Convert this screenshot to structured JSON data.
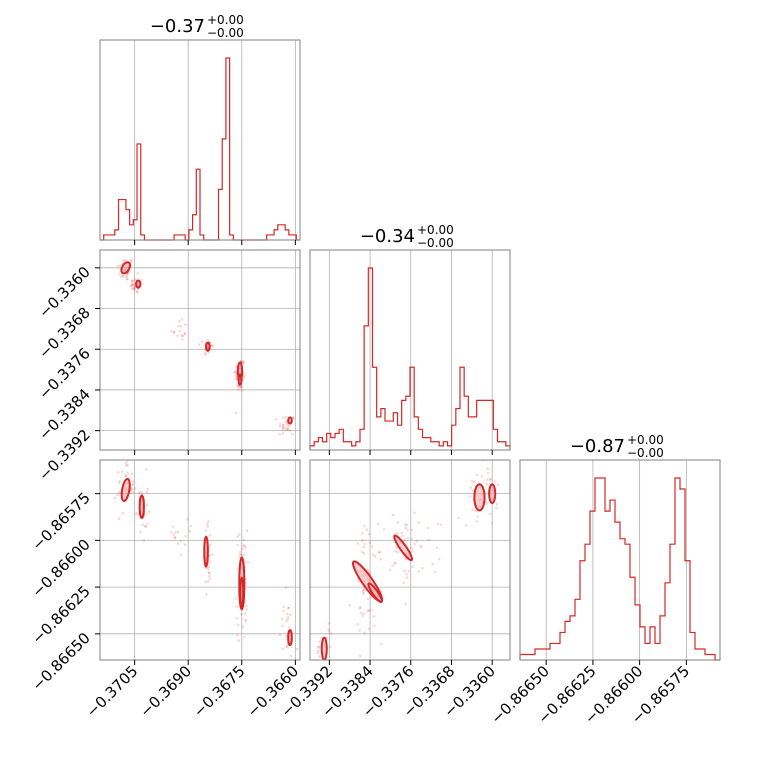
{
  "chart_data": {
    "type": "corner",
    "colors": {
      "series": "#d62728",
      "fill": "#f4a6a8",
      "grid": "#b0b0b0",
      "frame": "#808080"
    },
    "grid": true,
    "titles": [
      {
        "main": "−0.37",
        "plus": "+0.00",
        "minus": "−0.00"
      },
      {
        "main": "−0.34",
        "plus": "+0.00",
        "minus": "−0.00"
      },
      {
        "main": "−0.87",
        "plus": "+0.00",
        "minus": "−0.00"
      }
    ],
    "params": [
      {
        "range": [
          -0.37147,
          -0.36587
        ],
        "ticks": [
          -0.3705,
          -0.369,
          -0.3675,
          -0.366
        ],
        "tick_labels": [
          "−0.3705",
          "−0.3690",
          "−0.3675",
          "−0.3660"
        ]
      },
      {
        "range": [
          -0.33958,
          -0.33565
        ],
        "ticks": [
          -0.336,
          -0.3368,
          -0.3376,
          -0.3384,
          -0.3392
        ],
        "tick_labels": [
          "−0.3360",
          "−0.3368",
          "−0.3376",
          "−0.3384",
          "−0.3392"
        ],
        "x_ticks": [
          -0.3392,
          -0.3384,
          -0.3376,
          -0.3368,
          -0.336
        ],
        "x_tick_labels": [
          "−0.3392",
          "−0.3384",
          "−0.3376",
          "−0.3368",
          "−0.3360"
        ]
      },
      {
        "range": [
          -0.86664,
          -0.86557
        ],
        "ticks": [
          -0.86575,
          -0.866,
          -0.86625,
          -0.8665
        ],
        "tick_labels": [
          "−0.86575",
          "−0.86600",
          "−0.86625",
          "−0.86650"
        ],
        "x_ticks": [
          -0.8665,
          -0.86625,
          -0.866,
          -0.86575
        ],
        "x_tick_labels": [
          "−0.86650",
          "−0.86625",
          "−0.86600",
          "−0.86575"
        ]
      }
    ],
    "histograms": [
      {
        "param": 0,
        "counts": [
          0,
          1,
          1,
          1,
          2,
          8,
          8,
          6,
          3,
          4,
          19,
          1,
          0,
          0,
          0,
          0,
          0,
          0,
          0,
          0,
          1,
          1,
          1,
          0,
          2,
          5,
          14,
          1,
          0,
          0,
          0,
          0,
          10,
          20,
          36,
          1,
          0,
          0,
          0,
          0,
          0,
          0,
          0,
          0,
          0,
          1,
          1,
          2,
          3,
          3,
          2,
          1,
          1,
          0
        ]
      },
      {
        "param": 1,
        "counts": [
          1,
          2,
          3,
          2,
          4,
          3,
          4,
          5,
          2,
          2,
          1,
          2,
          5,
          30,
          44,
          20,
          8,
          10,
          7,
          7,
          9,
          6,
          12,
          13,
          20,
          8,
          5,
          3,
          3,
          2,
          2,
          1,
          2,
          1,
          6,
          10,
          20,
          13,
          8,
          8,
          12,
          12,
          12,
          12,
          5,
          2,
          2,
          1
        ]
      },
      {
        "param": 2,
        "counts": [
          1,
          1,
          1,
          2,
          2,
          2,
          3,
          3,
          5,
          7,
          8,
          11,
          18,
          21,
          27,
          33,
          33,
          27,
          29,
          25,
          22,
          21,
          15,
          10,
          6,
          3,
          6,
          3,
          8,
          14,
          21,
          33,
          31,
          18,
          5,
          2,
          2,
          1,
          1,
          0
        ]
      }
    ],
    "scatter_2d": [
      {
        "x_param": 0,
        "y_param": 1,
        "blobs": [
          {
            "cx": -0.37075,
            "cy": -0.33602,
            "sx": 8e-05,
            "sy": 8e-05,
            "n": 40
          },
          {
            "cx": -0.37045,
            "cy": -0.33635,
            "sx": 6e-05,
            "sy": 5e-05,
            "n": 30
          },
          {
            "cx": -0.36925,
            "cy": -0.3372,
            "sx": 8e-05,
            "sy": 8e-05,
            "n": 15
          },
          {
            "cx": -0.36845,
            "cy": -0.33755,
            "sx": 4e-05,
            "sy": 6e-05,
            "n": 35
          },
          {
            "cx": -0.36755,
            "cy": -0.3381,
            "sx": 5e-05,
            "sy": 0.00012,
            "n": 60
          },
          {
            "cx": -0.36625,
            "cy": -0.3391,
            "sx": 8e-05,
            "sy": 8e-05,
            "n": 25
          }
        ],
        "contours": [
          {
            "cx": -0.37075,
            "cy": -0.336,
            "rx": 0.0001,
            "ry": 0.00012,
            "rot": 30
          },
          {
            "cx": -0.3704,
            "cy": -0.33632,
            "rx": 6e-05,
            "ry": 7e-05,
            "rot": 0
          },
          {
            "cx": -0.36845,
            "cy": -0.33755,
            "rx": 5e-05,
            "ry": 8e-05,
            "rot": 0
          },
          {
            "cx": -0.36755,
            "cy": -0.33803,
            "rx": 6e-05,
            "ry": 0.00017,
            "rot": 0
          },
          {
            "cx": -0.36755,
            "cy": -0.3382,
            "rx": 4e-05,
            "ry": 0.0001,
            "rot": 0
          },
          {
            "cx": -0.36615,
            "cy": -0.339,
            "rx": 5e-05,
            "ry": 6e-05,
            "rot": 0
          }
        ]
      },
      {
        "x_param": 0,
        "y_param": 2,
        "blobs": [
          {
            "cx": -0.37075,
            "cy": -0.86571,
            "sx": 8e-05,
            "sy": 5e-05,
            "n": 40
          },
          {
            "cx": -0.3703,
            "cy": -0.86583,
            "sx": 6e-05,
            "sy": 6e-05,
            "n": 30
          },
          {
            "cx": -0.3691,
            "cy": -0.86596,
            "sx": 0.0001,
            "sy": 5e-05,
            "n": 15
          },
          {
            "cx": -0.36845,
            "cy": -0.86608,
            "sx": 4e-05,
            "sy": 6e-05,
            "n": 35
          },
          {
            "cx": -0.3675,
            "cy": -0.86624,
            "sx": 5e-05,
            "sy": 0.0001,
            "n": 60
          },
          {
            "cx": -0.36625,
            "cy": -0.86648,
            "sx": 7e-05,
            "sy": 6e-05,
            "n": 25
          }
        ],
        "contours": [
          {
            "cx": -0.37075,
            "cy": -0.86573,
            "rx": 0.0001,
            "ry": 6e-05,
            "rot": 10
          },
          {
            "cx": -0.3703,
            "cy": -0.86582,
            "rx": 6e-05,
            "ry": 6e-05,
            "rot": 0
          },
          {
            "cx": -0.3685,
            "cy": -0.86606,
            "rx": 5e-05,
            "ry": 8e-05,
            "rot": 0
          },
          {
            "cx": -0.3675,
            "cy": -0.86623,
            "rx": 7e-05,
            "ry": 0.00014,
            "rot": 0
          },
          {
            "cx": -0.3675,
            "cy": -0.86628,
            "rx": 4e-05,
            "ry": 8e-05,
            "rot": 0
          },
          {
            "cx": -0.36615,
            "cy": -0.86652,
            "rx": 5e-05,
            "ry": 4e-05,
            "rot": 0
          }
        ]
      },
      {
        "x_param": 1,
        "y_param": 2,
        "blobs": [
          {
            "cx": -0.33935,
            "cy": -0.86655,
            "sx": 8e-05,
            "sy": 4e-05,
            "n": 20
          },
          {
            "cx": -0.33845,
            "cy": -0.86624,
            "sx": 0.0001,
            "sy": 0.0001,
            "n": 60
          },
          {
            "cx": -0.3377,
            "cy": -0.86605,
            "sx": 0.0001,
            "sy": 7e-05,
            "n": 40
          },
          {
            "cx": -0.3372,
            "cy": -0.866,
            "sx": 0.00012,
            "sy": 6e-05,
            "n": 15
          },
          {
            "cx": -0.3362,
            "cy": -0.86575,
            "sx": 0.0001,
            "sy": 6e-05,
            "n": 40
          }
        ],
        "contours": [
          {
            "cx": -0.3393,
            "cy": -0.86658,
            "rx": 5e-05,
            "ry": 6e-05,
            "rot": 0
          },
          {
            "cx": -0.33845,
            "cy": -0.86622,
            "rx": 0.0001,
            "ry": 0.00013,
            "rot": -35
          },
          {
            "cx": -0.3383,
            "cy": -0.86628,
            "rx": 5e-05,
            "ry": 6e-05,
            "rot": -35
          },
          {
            "cx": -0.33775,
            "cy": -0.86604,
            "rx": 6e-05,
            "ry": 8e-05,
            "rot": -35
          },
          {
            "cx": -0.33625,
            "cy": -0.86577,
            "rx": 0.0001,
            "ry": 7e-05,
            "rot": 0
          },
          {
            "cx": -0.336,
            "cy": -0.86575,
            "rx": 6e-05,
            "ry": 5e-05,
            "rot": 0
          }
        ]
      }
    ]
  }
}
